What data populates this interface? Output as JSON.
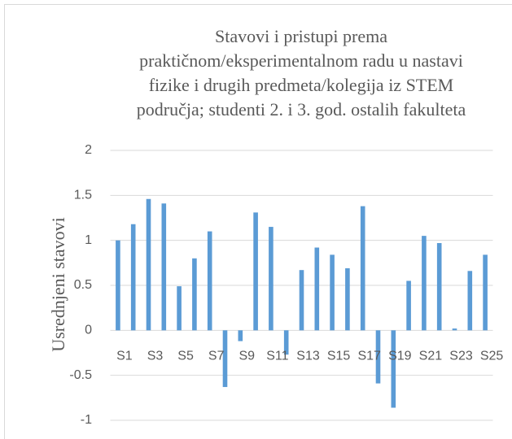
{
  "chart_data": {
    "type": "bar",
    "title": "Stavovi i pristupi prema praktičnom/eksperimentalnom radu u nastavi fizike i drugih predmeta/kolegija iz STEM područja; studenti 2. i 3. god. ostalih fakulteta",
    "y_label": "Usrednjeni stavovi",
    "categories": [
      "S1",
      null,
      "S3",
      null,
      "S5",
      null,
      "S7",
      null,
      "S9",
      null,
      "S11",
      null,
      "S13",
      null,
      "S15",
      null,
      "S17",
      null,
      "S19",
      null,
      "S21",
      null,
      "S23",
      null,
      "S25"
    ],
    "values": [
      1.0,
      1.18,
      1.46,
      1.41,
      0.49,
      0.8,
      1.1,
      -0.63,
      -0.12,
      1.31,
      1.15,
      -0.27,
      0.67,
      0.92,
      0.84,
      0.69,
      1.38,
      -0.59,
      -0.86,
      0.55,
      1.05,
      0.97,
      0.02,
      0.66,
      0.84
    ],
    "color": "#5b9bd5",
    "ylim": [
      -1,
      2
    ],
    "yticks": [
      -1,
      -0.5,
      0,
      0.5,
      1,
      1.5,
      2
    ],
    "grid": true
  }
}
